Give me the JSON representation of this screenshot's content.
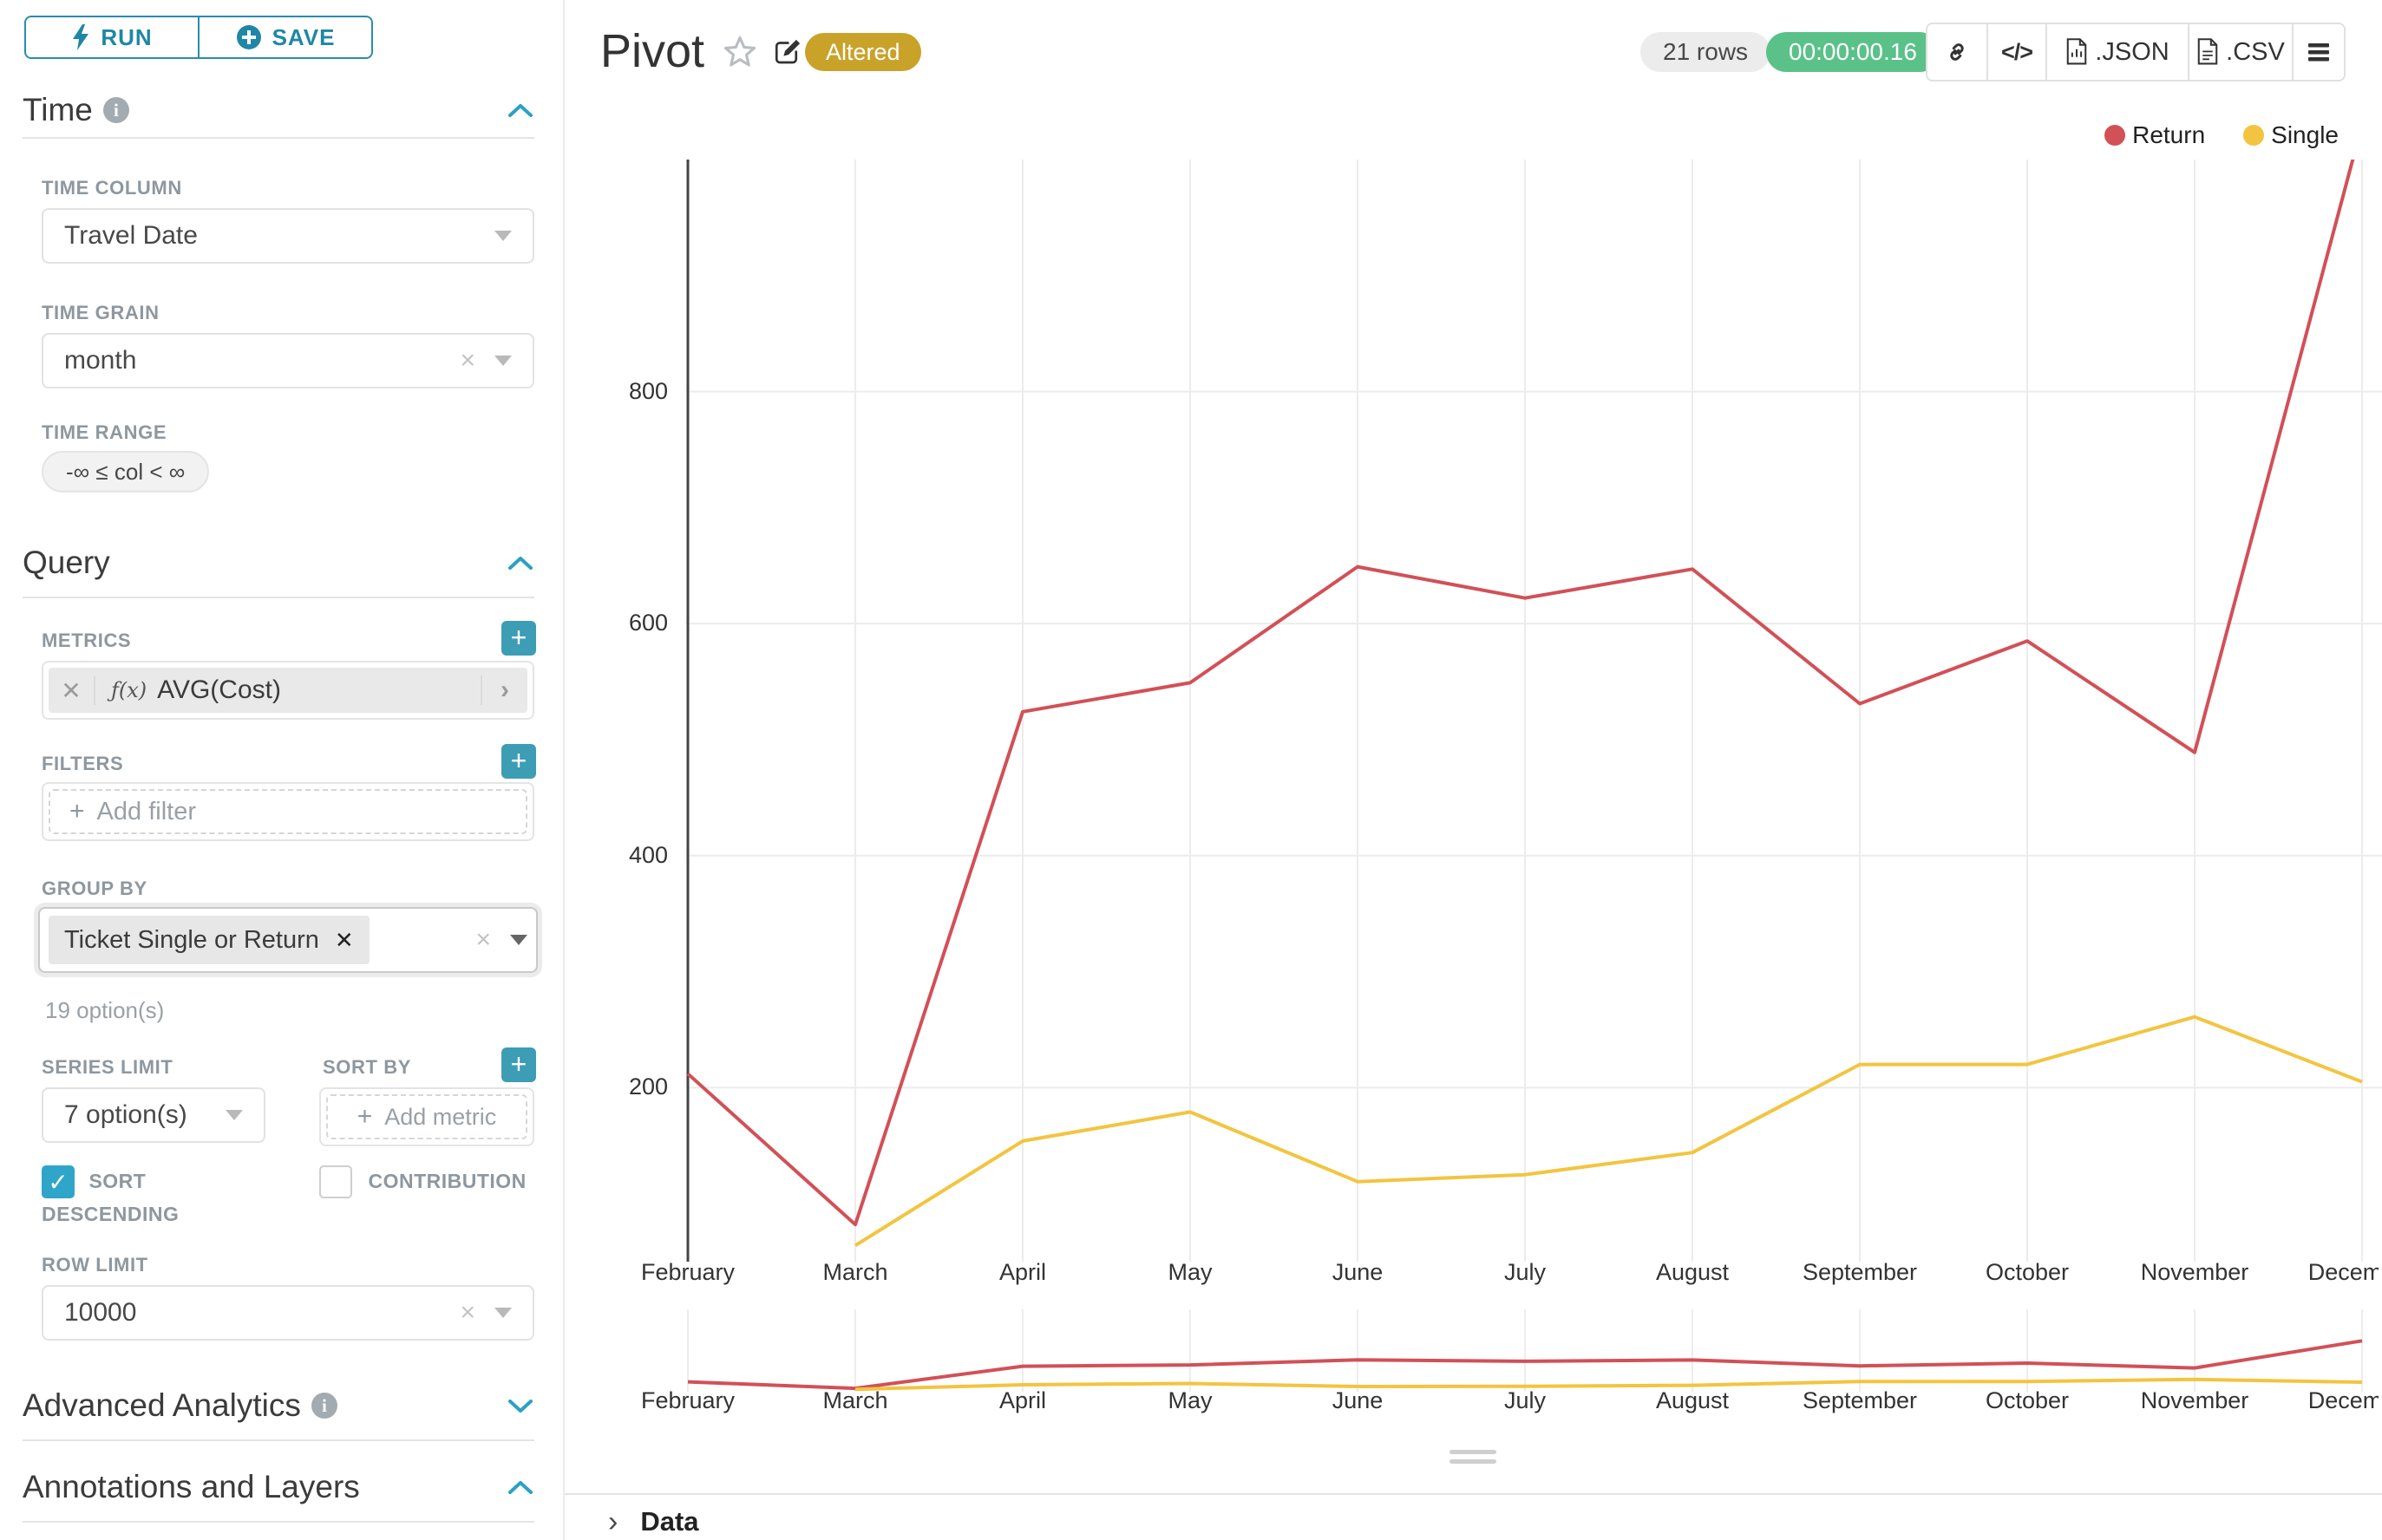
{
  "toolbar": {
    "run": "RUN",
    "save": "SAVE"
  },
  "sidebar": {
    "time_section": "Time",
    "query_section": "Query",
    "advanced_section": "Advanced Analytics",
    "annotations_section": "Annotations and Layers",
    "time_column_label": "TIME COLUMN",
    "time_column_value": "Travel Date",
    "time_grain_label": "TIME GRAIN",
    "time_grain_value": "month",
    "time_range_label": "TIME RANGE",
    "time_range_value": "-∞ ≤ col < ∞",
    "metrics_label": "METRICS",
    "metric_fx": "ƒ(x)",
    "metric_value": "AVG(Cost)",
    "filters_label": "FILTERS",
    "add_filter_label": "Add filter",
    "group_by_label": "GROUP BY",
    "group_by_value": "Ticket Single or Return",
    "group_by_options": "19 option(s)",
    "series_limit_label": "SERIES LIMIT",
    "series_limit_value": "7 option(s)",
    "sort_by_label": "SORT BY",
    "add_metric_label": "Add metric",
    "sort_descending_label": "SORT DESCENDING",
    "contribution_label": "CONTRIBUTION",
    "row_limit_label": "ROW LIMIT",
    "row_limit_value": "10000"
  },
  "header": {
    "title": "Pivot",
    "badge": "Altered",
    "row_count": "21 rows",
    "timer": "00:00:00.16",
    "json_label": ".JSON",
    "csv_label": ".CSV"
  },
  "footer": {
    "data_label": "Data"
  },
  "chart_data": {
    "type": "line",
    "x": [
      "February",
      "March",
      "April",
      "May",
      "June",
      "July",
      "August",
      "September",
      "October",
      "November",
      "December"
    ],
    "series": [
      {
        "name": "Return",
        "color": "#d25057",
        "values": [
          212,
          82,
          524,
          549,
          649,
          622,
          647,
          531,
          585,
          489,
          1030
        ]
      },
      {
        "name": "Single",
        "color": "#f3c43f",
        "values": [
          null,
          64,
          154,
          179,
          119,
          125,
          144,
          220,
          220,
          261,
          205
        ]
      }
    ],
    "yticks": [
      200,
      400,
      600,
      800
    ],
    "ylim": [
      50,
      1000
    ],
    "xlabel": "",
    "ylabel": "",
    "grid": true,
    "legend_position": "top-right",
    "has_range_brush": true
  }
}
